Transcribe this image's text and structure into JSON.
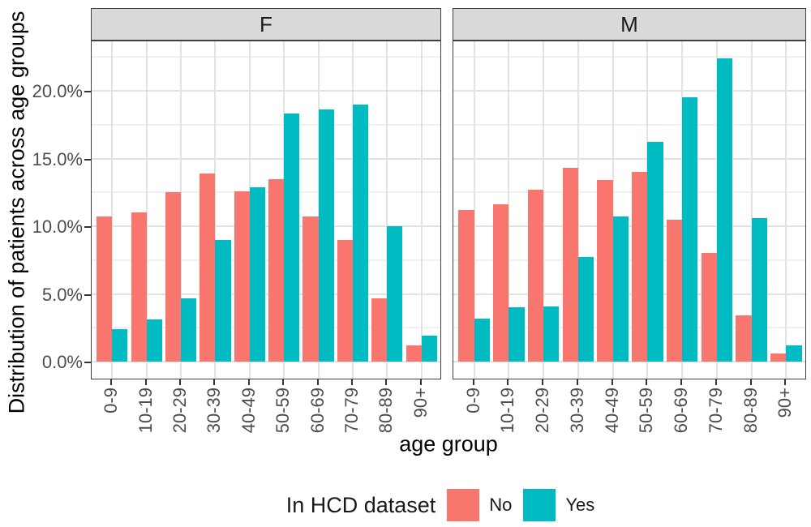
{
  "chart_data": {
    "type": "bar",
    "title": "",
    "categories": [
      "0-9",
      "10-19",
      "20-29",
      "30-39",
      "40-49",
      "50-59",
      "60-69",
      "70-79",
      "80-89",
      "90+"
    ],
    "xlabel": "age group",
    "ylabel": "Distribution of patients across age groups",
    "y_ticks": [
      {
        "value": 0,
        "label": "0.0%"
      },
      {
        "value": 5,
        "label": "5.0%"
      },
      {
        "value": 10,
        "label": "10.0%"
      },
      {
        "value": 15,
        "label": "15.0%"
      },
      {
        "value": 20,
        "label": "20.0%"
      }
    ],
    "ylim": [
      0,
      23.8
    ],
    "grid": true,
    "legend": {
      "title": "In HCD dataset",
      "position": "bottom",
      "entries": [
        {
          "label": "No",
          "color": "#F8766D"
        },
        {
          "label": "Yes",
          "color": "#00BCC2"
        }
      ]
    },
    "facets": [
      {
        "label": "F",
        "series": [
          {
            "name": "No",
            "values": [
              10.7,
              11.0,
              12.5,
              13.9,
              12.6,
              13.5,
              10.7,
              9.0,
              4.7,
              1.2
            ]
          },
          {
            "name": "Yes",
            "values": [
              2.4,
              3.1,
              4.7,
              9.0,
              12.9,
              18.3,
              18.6,
              19.0,
              10.0,
              1.9
            ]
          }
        ]
      },
      {
        "label": "M",
        "series": [
          {
            "name": "No",
            "values": [
              11.2,
              11.6,
              12.7,
              14.3,
              13.4,
              14.0,
              10.5,
              8.0,
              3.4,
              0.6
            ]
          },
          {
            "name": "Yes",
            "values": [
              3.2,
              4.0,
              4.1,
              7.7,
              10.7,
              16.2,
              19.5,
              22.4,
              10.6,
              1.2
            ]
          }
        ]
      }
    ],
    "colors": {
      "no": "#F8766D",
      "yes": "#00BCC2",
      "strip_fill": "#D9D9D9",
      "panel_border": "#404040",
      "grid_major": "#E2E2E2",
      "grid_minor": "#F0F0F0",
      "axis_text": "#4D4D4D",
      "axis_title": "#000000"
    }
  }
}
